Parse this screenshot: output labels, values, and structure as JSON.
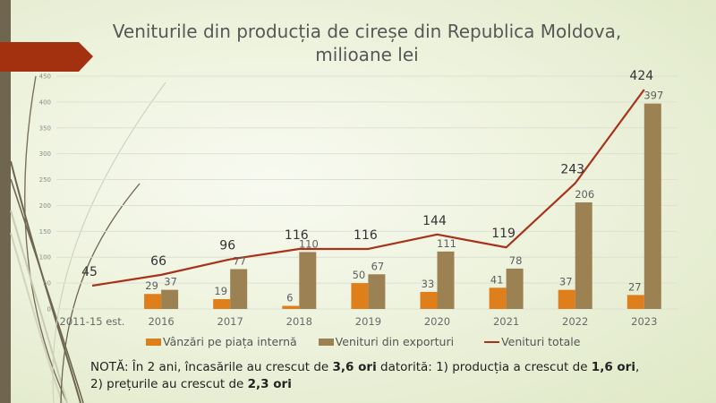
{
  "slide": {
    "title_line1": "Veniturile din producția de cireșe din Republica Moldova,",
    "title_line2": "milioane lei",
    "note": {
      "p1": "NOTĂ: În 2 ani, încasările au crescut de ",
      "b1": "3,6 ori",
      "p2": " datorită: 1) producția a crescut de ",
      "b2": "1,6 ori",
      "p3": ",",
      "p4": "2) prețurile au crescut de ",
      "b3": "2,3 ori"
    }
  },
  "colors": {
    "domestic": "#de7f1c",
    "exports": "#9c8152",
    "total": "#a8321a",
    "accent_bar": "#6f6650",
    "banner": "#a3300f"
  },
  "chart_data": {
    "type": "bar",
    "title": "Veniturile din producția de cireșe din Republica Moldova, milioane lei",
    "categories": [
      "2011-15 est.",
      "2016",
      "2017",
      "2018",
      "2019",
      "2020",
      "2021",
      "2022",
      "2023"
    ],
    "series": [
      {
        "name": "Vânzări pe piața internă",
        "type": "bar",
        "values": [
          null,
          29,
          19,
          6,
          50,
          33,
          41,
          37,
          27
        ]
      },
      {
        "name": "Venituri din exporturi",
        "type": "bar",
        "values": [
          null,
          37,
          77,
          110,
          67,
          111,
          78,
          206,
          397
        ]
      },
      {
        "name": "Venituri totale",
        "type": "line",
        "values": [
          45,
          66,
          96,
          116,
          116,
          144,
          119,
          243,
          424
        ]
      }
    ],
    "ylim": [
      0,
      450
    ],
    "yticks": [
      0,
      50,
      100,
      150,
      200,
      250,
      300,
      350,
      400,
      450
    ],
    "grid": true,
    "legend": "bottom"
  }
}
